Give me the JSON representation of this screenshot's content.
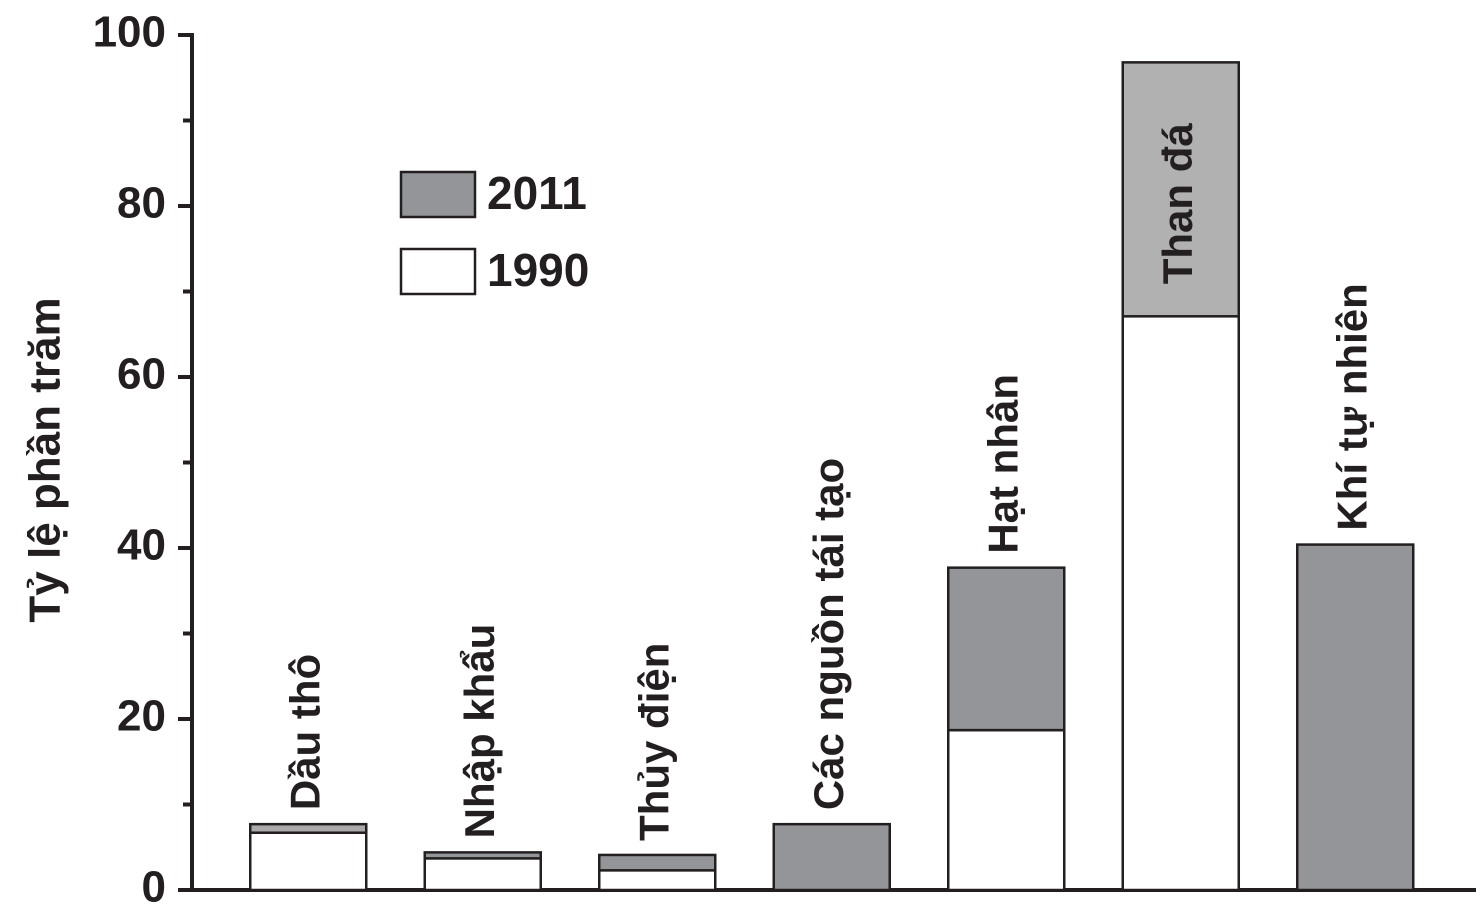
{
  "chart_data": {
    "type": "stacked_bar",
    "ylabel": "Tỷ lệ phần trăm",
    "categories": [
      "Dầu thô",
      "Nhập khẩu",
      "Thủy điện",
      "Các nguồn tái tạo",
      "Hạt nhân",
      "Than đá",
      "Khí tự nhiên"
    ],
    "series": [
      {
        "name": "1990",
        "color": "#ffffff",
        "values": [
          6.7,
          3.7,
          2.3,
          0,
          18.7,
          67.1,
          0
        ]
      },
      {
        "name": "2011",
        "color": "#939598",
        "colors": [
          "#aaaaaa",
          "#939598",
          "#939598",
          "#939598",
          "#939598",
          "#b1b1b1",
          "#939598"
        ],
        "values": [
          1.0,
          0.7,
          1.8,
          7.7,
          19.0,
          29.7,
          40.4
        ]
      }
    ],
    "ylim": [
      0,
      100
    ],
    "yticks": [
      0,
      20,
      40,
      60,
      80,
      100
    ],
    "legend": "upper left"
  }
}
